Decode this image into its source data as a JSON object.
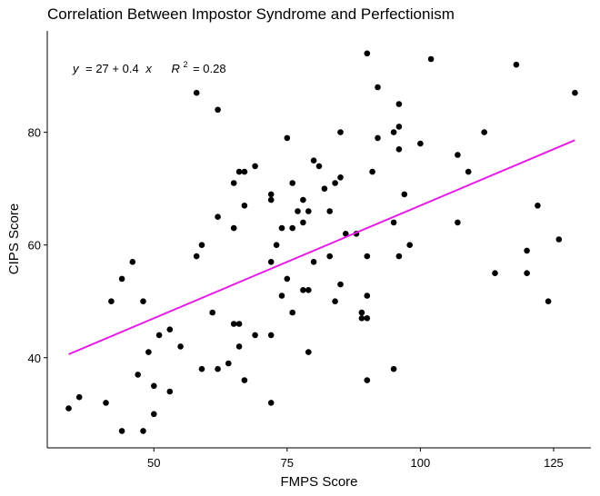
{
  "chart_data": {
    "type": "scatter",
    "title": "Correlation Between Impostor Syndrome and Perfectionism",
    "xlabel": "FMPS Score",
    "ylabel": "CIPS Score",
    "xlim": [
      30,
      132
    ],
    "ylim": [
      24,
      98
    ],
    "xticks": [
      50,
      75,
      100,
      125
    ],
    "yticks": [
      40,
      60,
      80
    ],
    "grid": false,
    "annotation": {
      "eq_y": "y",
      "eq_rhs": "= 27 + 0.4",
      "eq_x": "x",
      "r_label": "R",
      "r_exp": "2",
      "r_value": "= 0.28"
    },
    "trend_line": {
      "intercept": 27,
      "slope": 0.4,
      "x_range": [
        34,
        129
      ],
      "color": "#E61CE6"
    },
    "point_color": "#000000",
    "points": [
      [
        34,
        31
      ],
      [
        36,
        33
      ],
      [
        41,
        32
      ],
      [
        42,
        50
      ],
      [
        44,
        54
      ],
      [
        44,
        27
      ],
      [
        46,
        57
      ],
      [
        47,
        37
      ],
      [
        48,
        50
      ],
      [
        48,
        27
      ],
      [
        49,
        41
      ],
      [
        50,
        35
      ],
      [
        50,
        30
      ],
      [
        51,
        44
      ],
      [
        53,
        45
      ],
      [
        53,
        34
      ],
      [
        55,
        42
      ],
      [
        58,
        58
      ],
      [
        58,
        87
      ],
      [
        59,
        60
      ],
      [
        59,
        38
      ],
      [
        61,
        48
      ],
      [
        62,
        84
      ],
      [
        62,
        65
      ],
      [
        62,
        38
      ],
      [
        64,
        39
      ],
      [
        65,
        71
      ],
      [
        65,
        63
      ],
      [
        65,
        46
      ],
      [
        66,
        73
      ],
      [
        66,
        46
      ],
      [
        66,
        42
      ],
      [
        67,
        73
      ],
      [
        67,
        67
      ],
      [
        67,
        36
      ],
      [
        69,
        74
      ],
      [
        69,
        44
      ],
      [
        72,
        69
      ],
      [
        72,
        68
      ],
      [
        72,
        57
      ],
      [
        72,
        44
      ],
      [
        72,
        32
      ],
      [
        73,
        60
      ],
      [
        74,
        63
      ],
      [
        74,
        51
      ],
      [
        75,
        79
      ],
      [
        75,
        54
      ],
      [
        76,
        71
      ],
      [
        76,
        63
      ],
      [
        76,
        48
      ],
      [
        77,
        66
      ],
      [
        78,
        68
      ],
      [
        78,
        64
      ],
      [
        78,
        52
      ],
      [
        79,
        66
      ],
      [
        79,
        52
      ],
      [
        79,
        41
      ],
      [
        80,
        75
      ],
      [
        80,
        57
      ],
      [
        81,
        74
      ],
      [
        82,
        70
      ],
      [
        83,
        66
      ],
      [
        83,
        58
      ],
      [
        84,
        71
      ],
      [
        84,
        50
      ],
      [
        85,
        80
      ],
      [
        85,
        72
      ],
      [
        85,
        53
      ],
      [
        86,
        62
      ],
      [
        88,
        62
      ],
      [
        89,
        48
      ],
      [
        89,
        47
      ],
      [
        90,
        94
      ],
      [
        90,
        58
      ],
      [
        90,
        51
      ],
      [
        90,
        47
      ],
      [
        90,
        36
      ],
      [
        91,
        73
      ],
      [
        92,
        88
      ],
      [
        92,
        79
      ],
      [
        95,
        80
      ],
      [
        95,
        64
      ],
      [
        95,
        38
      ],
      [
        96,
        85
      ],
      [
        96,
        81
      ],
      [
        96,
        77
      ],
      [
        96,
        58
      ],
      [
        97,
        69
      ],
      [
        98,
        60
      ],
      [
        100,
        78
      ],
      [
        102,
        93
      ],
      [
        107,
        76
      ],
      [
        107,
        64
      ],
      [
        109,
        73
      ],
      [
        112,
        80
      ],
      [
        114,
        55
      ],
      [
        118,
        92
      ],
      [
        120,
        59
      ],
      [
        120,
        55
      ],
      [
        122,
        67
      ],
      [
        124,
        50
      ],
      [
        126,
        61
      ],
      [
        129,
        87
      ]
    ]
  }
}
